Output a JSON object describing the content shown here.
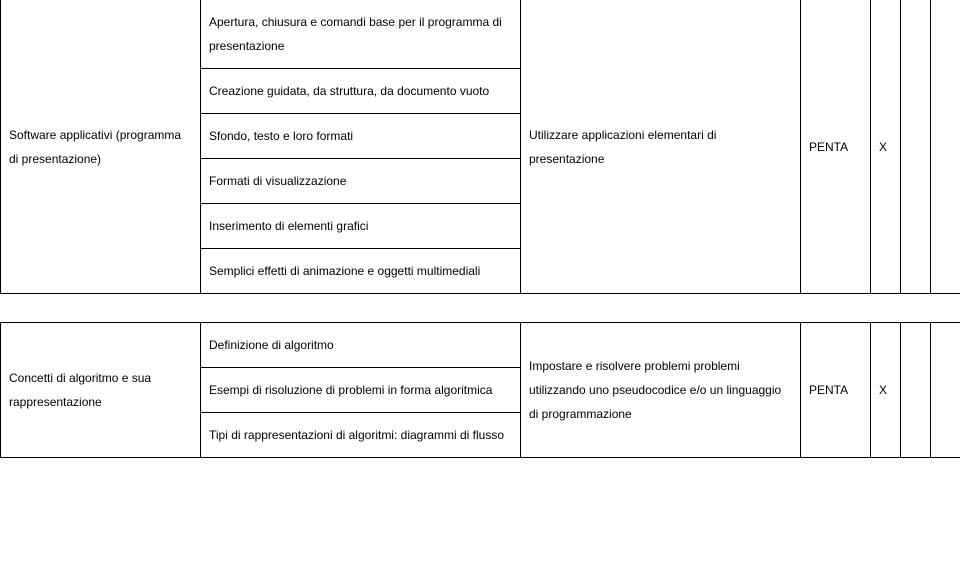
{
  "table1": {
    "col1": "Software applicativi (programma di presentazione)",
    "col2_rows": [
      "Apertura, chiusura e comandi base per il programma di presentazione",
      "Creazione guidata, da struttura, da documento vuoto",
      "Sfondo, testo e loro formati",
      "Formati di visualizzazione",
      "Inserimento di elementi grafici",
      "Semplici effetti di animazione e oggetti multimediali"
    ],
    "col3": "Utilizzare applicazioni elementari di presentazione",
    "col4": "PENTA",
    "col5": "X",
    "col6": "",
    "col7": ""
  },
  "table2": {
    "col1": "Concetti di algoritmo e sua rappresentazione",
    "col2_rows": [
      "Definizione di algoritmo",
      "Esempi di risoluzione di problemi in forma algoritmica",
      "Tipi di rappresentazioni di algoritmi: diagrammi di flusso"
    ],
    "col3": "Impostare e risolvere problemi problemi utilizzando uno pseudocodice e/o un linguaggio di programmazione",
    "col4": "PENTA",
    "col5": "X",
    "col6": "",
    "col7": ""
  }
}
